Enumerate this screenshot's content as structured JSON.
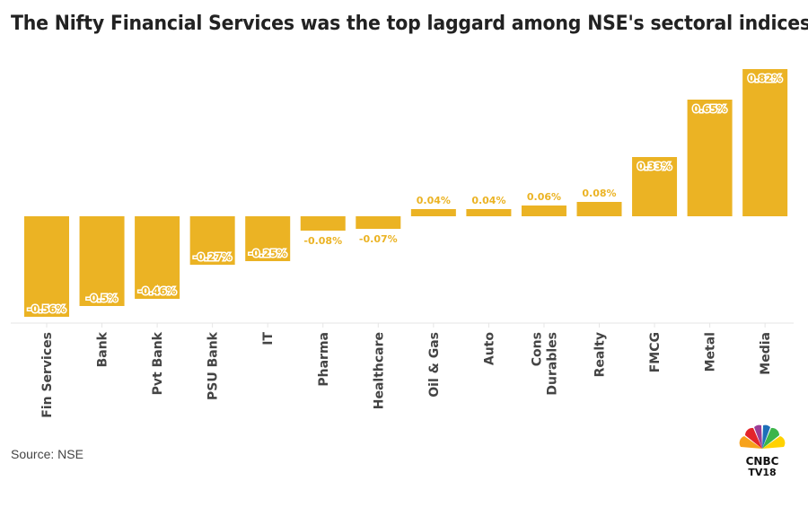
{
  "title": "The Nifty Financial Services was the top laggard among NSE's sectoral indices",
  "source": "Source: NSE",
  "logo_text": "CNBC TV18",
  "colors": {
    "bar": "#EBB324",
    "axis": "#e6e6e6",
    "text": "#444444"
  },
  "chart_data": {
    "type": "bar",
    "title": "The Nifty Financial Services was the top laggard among NSE's sectoral indices",
    "xlabel": "",
    "ylabel": "",
    "ylim": [
      -0.6,
      0.82
    ],
    "grid": false,
    "categories": [
      "Fin Services",
      "Bank",
      "Pvt Bank",
      "PSU Bank",
      "IT",
      "Pharma",
      "Healthcare",
      "Oil & Gas",
      "Auto",
      "Cons Durables",
      "Realty",
      "FMCG",
      "Metal",
      "Media"
    ],
    "category_lines": [
      [
        "Fin Services"
      ],
      [
        "Bank"
      ],
      [
        "Pvt Bank"
      ],
      [
        "PSU Bank"
      ],
      [
        "IT"
      ],
      [
        "Pharma"
      ],
      [
        "Healthcare"
      ],
      [
        "Oil & Gas"
      ],
      [
        "Auto"
      ],
      [
        "Cons",
        "Durables"
      ],
      [
        "Realty"
      ],
      [
        "FMCG"
      ],
      [
        "Metal"
      ],
      [
        "Media"
      ]
    ],
    "values": [
      -0.56,
      -0.5,
      -0.46,
      -0.27,
      -0.25,
      -0.08,
      -0.07,
      0.04,
      0.04,
      0.06,
      0.08,
      0.33,
      0.65,
      0.82
    ],
    "data_labels": [
      "-0.56%",
      "-0.5%",
      "-0.46%",
      "-0.27%",
      "-0.25%",
      "-0.08%",
      "-0.07%",
      "0.04%",
      "0.04%",
      "0.06%",
      "0.08%",
      "0.33%",
      "0.65%",
      "0.82%"
    ]
  }
}
